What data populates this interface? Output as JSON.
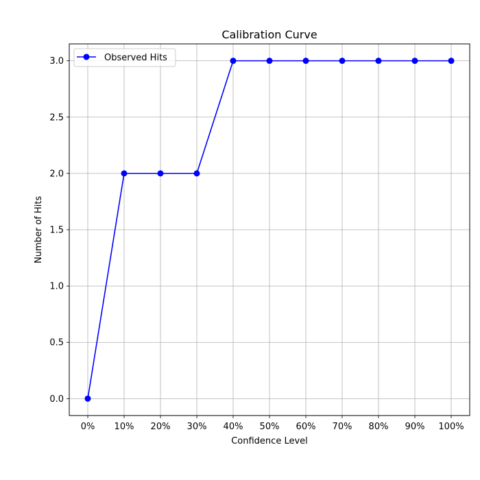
{
  "chart_data": {
    "type": "line",
    "title": "Calibration Curve",
    "xlabel": "Confidence Level",
    "ylabel": "Number of Hits",
    "categories": [
      "0%",
      "10%",
      "20%",
      "30%",
      "40%",
      "50%",
      "60%",
      "70%",
      "80%",
      "90%",
      "100%"
    ],
    "series": [
      {
        "name": "Observed Hits",
        "values": [
          0,
          2,
          2,
          2,
          3,
          3,
          3,
          3,
          3,
          3,
          3
        ],
        "color": "#0000ff",
        "marker": "circle"
      }
    ],
    "yticks": [
      "0.0",
      "0.5",
      "1.0",
      "1.5",
      "2.0",
      "2.5",
      "3.0"
    ],
    "ylim": [
      -0.15,
      3.15
    ],
    "grid": true,
    "legend_position": "top-left"
  }
}
